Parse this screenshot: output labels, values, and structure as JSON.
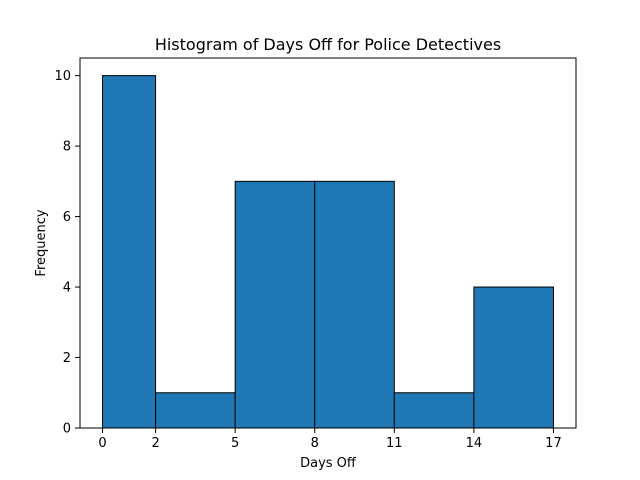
{
  "chart_data": {
    "type": "bar",
    "title": "Histogram of Days Off for Police Detectives",
    "xlabel": "Days Off",
    "ylabel": "Frequency",
    "bins": [
      {
        "start": 0,
        "end": 2,
        "value": 10
      },
      {
        "start": 2,
        "end": 5,
        "value": 1
      },
      {
        "start": 5,
        "end": 8,
        "value": 7
      },
      {
        "start": 8,
        "end": 11,
        "value": 7
      },
      {
        "start": 11,
        "end": 14,
        "value": 1
      },
      {
        "start": 14,
        "end": 17,
        "value": 4
      }
    ],
    "xticks": [
      0,
      2,
      5,
      8,
      11,
      14,
      17
    ],
    "yticks": [
      0,
      2,
      4,
      6,
      8,
      10
    ],
    "xlim": [
      -0.85,
      17.85
    ],
    "ylim": [
      0,
      10.5
    ],
    "bar_color": "#1f77b4",
    "edge_color": "#000000",
    "grid": false,
    "legend": "none"
  }
}
